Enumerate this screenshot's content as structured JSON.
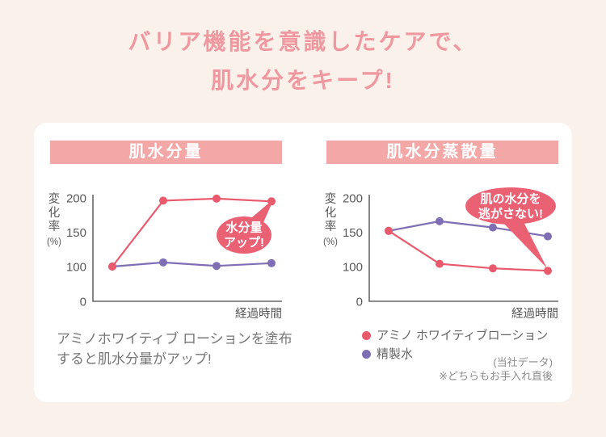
{
  "title": {
    "line1": "バリア機能を意識したケアで、",
    "line2": "肌水分をキープ!"
  },
  "colors": {
    "page_background": "#faf1eb",
    "card_background": "#ffffff",
    "title_text": "#ef989f",
    "header_background": "#f4a7a7",
    "header_text": "#ffffff",
    "lotion_series": "#e95a6c",
    "water_series": "#7f6eb3",
    "bubble_fill": "#eb6174",
    "bubble_text": "#ffffff",
    "axis_line": "#666666",
    "axis_text": "#595959",
    "caption_text": "#767676",
    "legend_text": "#666666",
    "note_text": "#8c8c8c"
  },
  "chart_data": [
    {
      "type": "line",
      "title": "肌水分量",
      "ylabel": "変化率",
      "ylabel_unit": "(%)",
      "xlabel": "経過時間",
      "yticks": [
        0,
        100,
        150,
        200
      ],
      "ylim": [
        0,
        210
      ],
      "x_tick_labels": [],
      "grid": false,
      "y_scale_note": "0-100 range compressed (same pixel span as 50 units)",
      "series": [
        {
          "name": "アミノ ホワイティブローション",
          "color": "#e95a6c",
          "values": [
            100,
            196,
            199,
            195
          ]
        },
        {
          "name": "精製水",
          "color": "#7f6eb3",
          "values": [
            100,
            106,
            101,
            105
          ]
        }
      ],
      "annotation": {
        "line1": "水分量",
        "line2": "アップ!"
      }
    },
    {
      "type": "line",
      "title": "肌水分蒸散量",
      "ylabel": "変化率",
      "ylabel_unit": "(%)",
      "xlabel": "経過時間",
      "yticks": [
        0,
        100,
        150,
        200
      ],
      "ylim": [
        0,
        210
      ],
      "x_tick_labels": [],
      "grid": false,
      "y_scale_note": "0-100 range compressed (same pixel span as 50 units)",
      "series": [
        {
          "name": "アミノ ホワイティブローション",
          "color": "#e95a6c",
          "values": [
            152,
            104,
            95,
            88
          ]
        },
        {
          "name": "精製水",
          "color": "#7f6eb3",
          "values": [
            152,
            166,
            157,
            144
          ]
        }
      ],
      "annotation": {
        "line1": "肌の水分を",
        "line2": "逃がさない!"
      }
    }
  ],
  "caption": {
    "line1": "アミノホワイティブ ローションを塗布",
    "line2": "すると肌水分量がアップ!"
  },
  "legend": {
    "items": [
      {
        "label": "アミノ ホワイティブローション",
        "color": "#e95a6c"
      },
      {
        "label": "精製水",
        "color": "#7f6eb3"
      }
    ]
  },
  "notes": {
    "source": "(当社データ)",
    "condition": "※どちらもお手入れ直後"
  }
}
